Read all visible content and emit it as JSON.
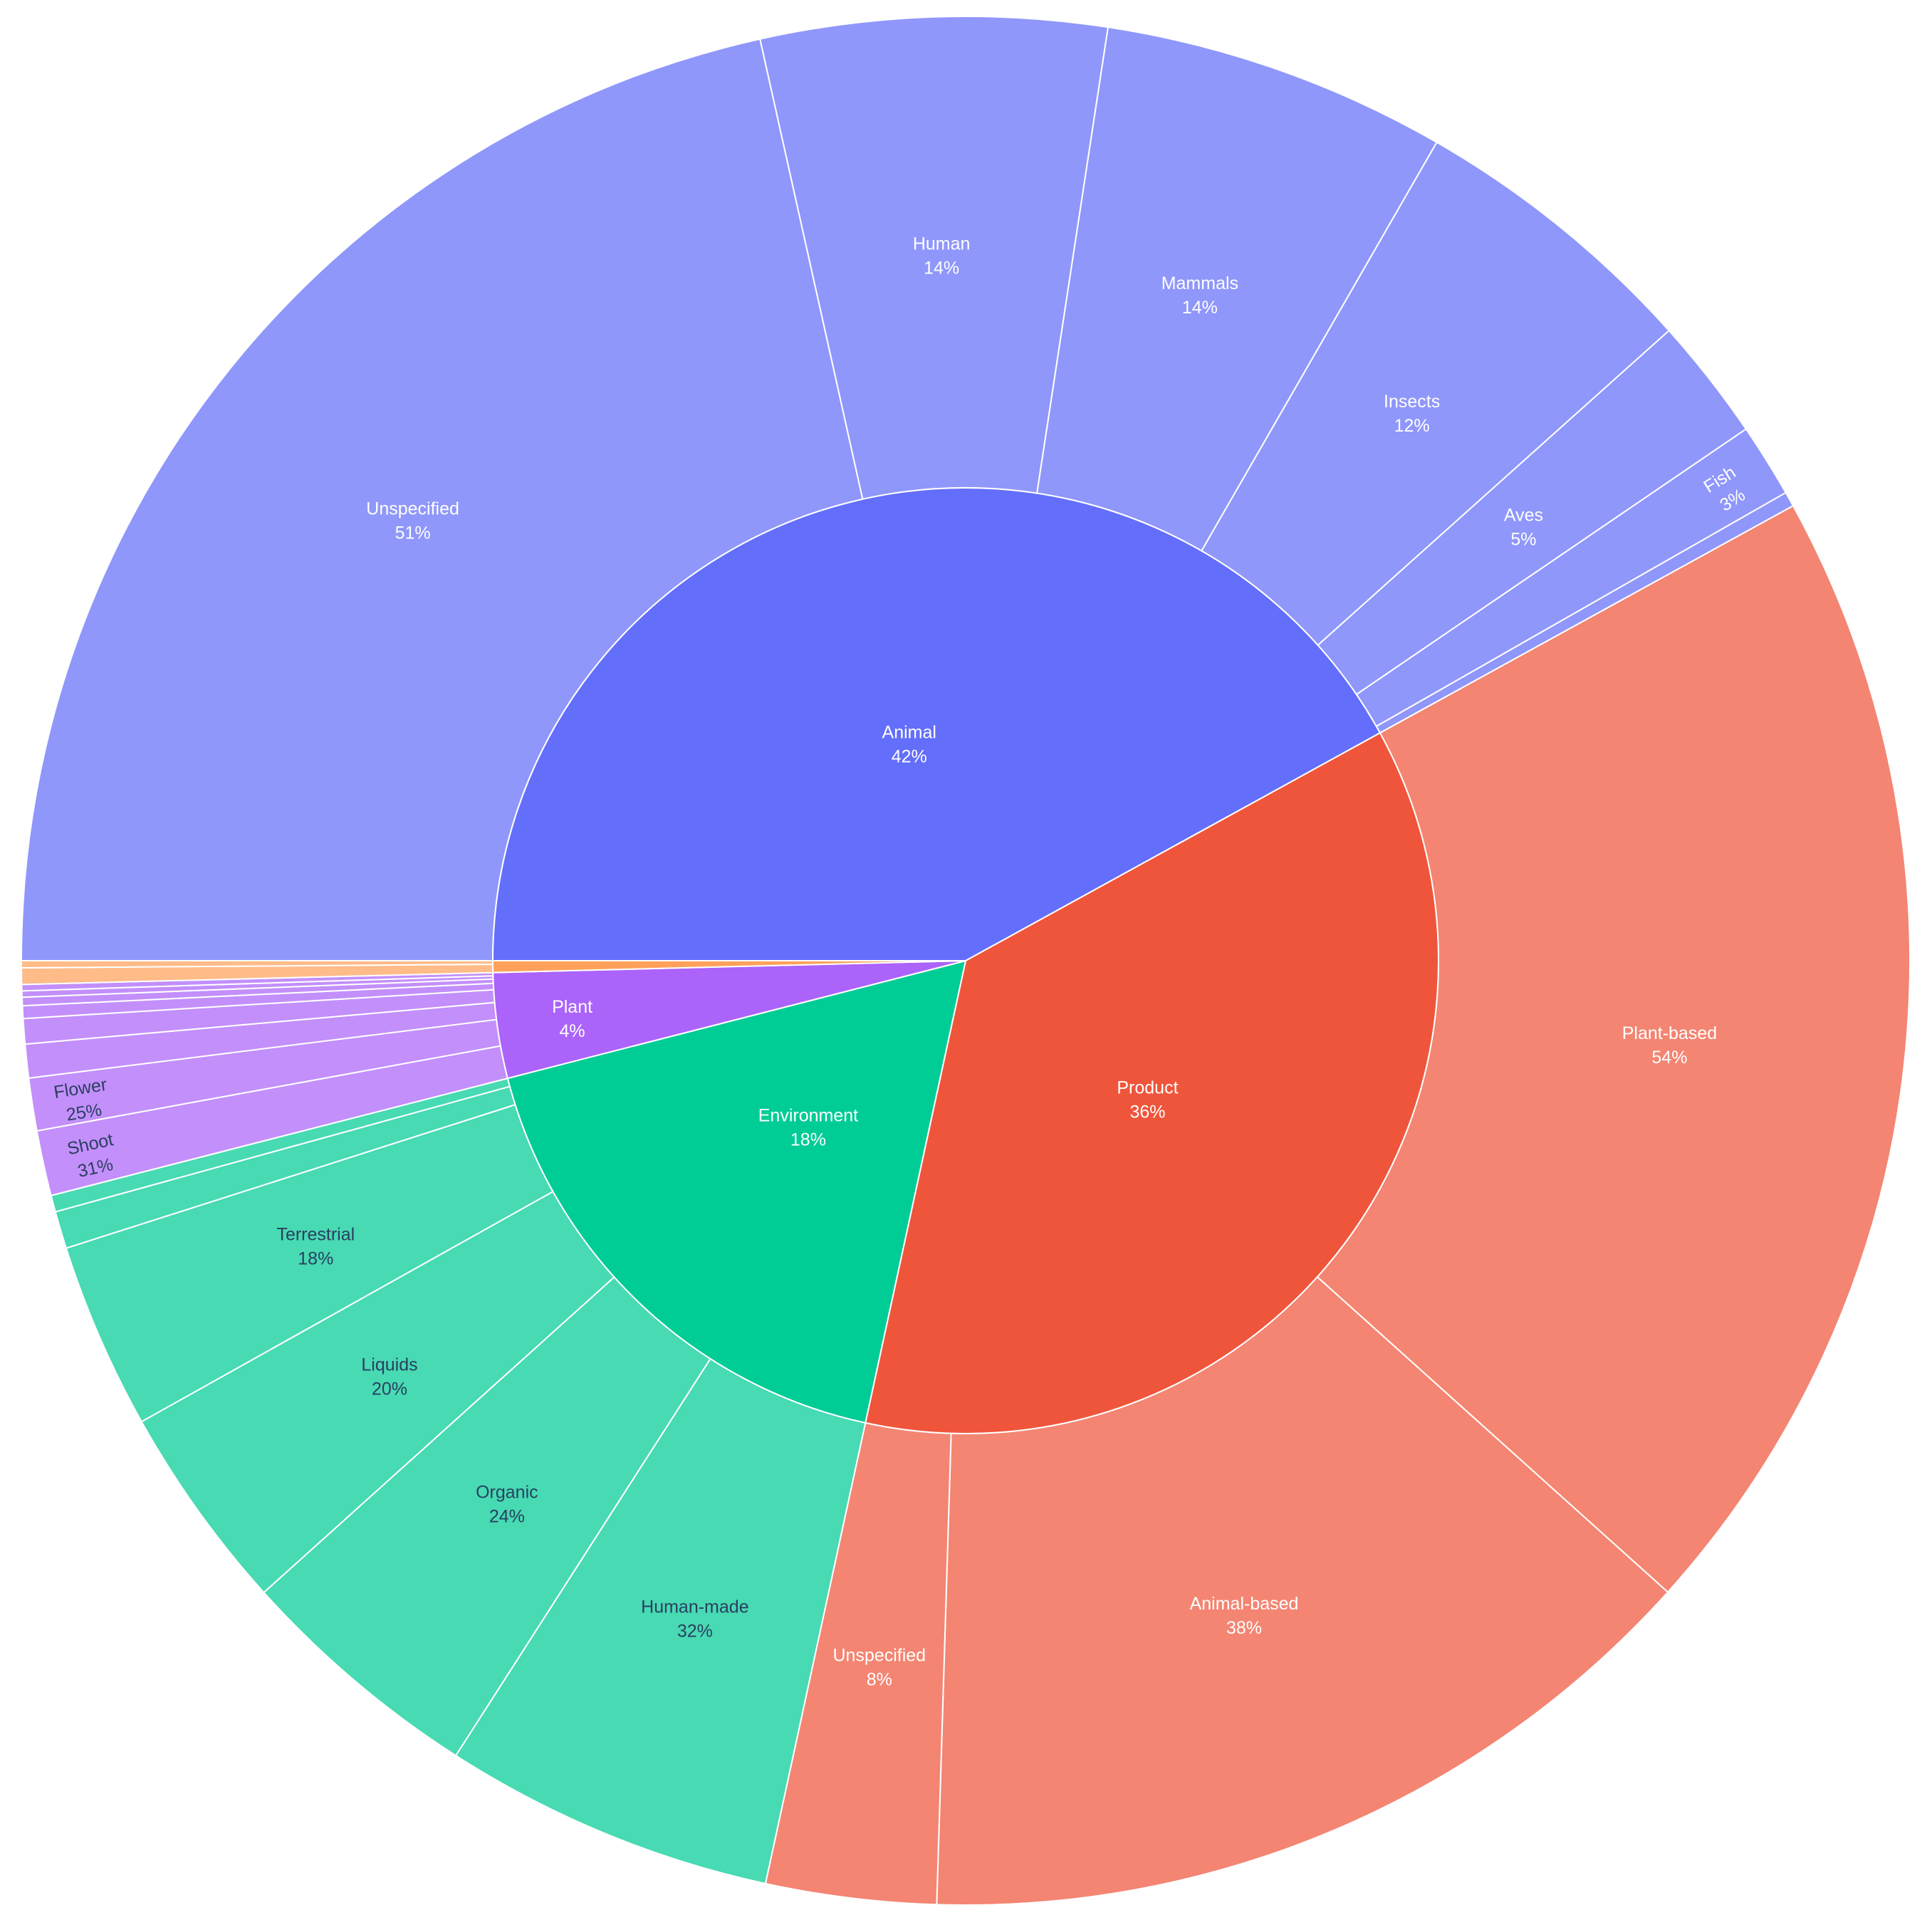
{
  "chart_data": {
    "type": "sunburst",
    "title": "",
    "inner": [
      {
        "id": "animal",
        "label": "Animal",
        "pct": "42%",
        "value": 42,
        "color": "#636efa",
        "children": [
          {
            "label": "Unspecified",
            "pct": "51%",
            "value": 51
          },
          {
            "label": "Human",
            "pct": "14%",
            "value": 14
          },
          {
            "label": "Mammals",
            "pct": "14%",
            "value": 14
          },
          {
            "label": "Insects",
            "pct": "12%",
            "value": 12
          },
          {
            "label": "Aves",
            "pct": "5%",
            "value": 5
          },
          {
            "label": "Fish",
            "pct": "3%",
            "value": 3
          },
          {
            "label": "",
            "pct": "",
            "value": 0.6
          }
        ]
      },
      {
        "id": "product",
        "label": "Product",
        "pct": "36%",
        "value": 36.4,
        "color": "#ef553b",
        "children": [
          {
            "label": "Plant-based",
            "pct": "54%",
            "value": 54
          },
          {
            "label": "Animal-based",
            "pct": "38%",
            "value": 38
          },
          {
            "label": "Unspecified",
            "pct": "8%",
            "value": 8
          }
        ]
      },
      {
        "id": "environment",
        "label": "Environment",
        "pct": "18%",
        "value": 17.6,
        "color": "#00cc96",
        "children": [
          {
            "label": "Human-made",
            "pct": "32%",
            "value": 32
          },
          {
            "label": "Organic",
            "pct": "24%",
            "value": 24
          },
          {
            "label": "Liquids",
            "pct": "20%",
            "value": 20
          },
          {
            "label": "Terrestrial",
            "pct": "18%",
            "value": 18
          },
          {
            "label": "",
            "pct": "",
            "value": 3.6
          },
          {
            "label": "",
            "pct": "",
            "value": 1.6
          }
        ]
      },
      {
        "id": "plant",
        "label": "Plant",
        "pct": "4%",
        "value": 3.6,
        "color": "#ab63fa",
        "children": [
          {
            "label": "Shoot",
            "pct": "31%",
            "value": 31
          },
          {
            "label": "Flower",
            "pct": "25%",
            "value": 25
          },
          {
            "label": "",
            "pct": "",
            "value": 16
          },
          {
            "label": "",
            "pct": "",
            "value": 12
          },
          {
            "label": "",
            "pct": "",
            "value": 6
          },
          {
            "label": "",
            "pct": "",
            "value": 4
          },
          {
            "label": "",
            "pct": "",
            "value": 3
          },
          {
            "label": "",
            "pct": "",
            "value": 3
          }
        ]
      },
      {
        "id": "other",
        "label": "",
        "pct": "",
        "value": 0.4,
        "color": "#ffa15a",
        "children": [
          {
            "label": "",
            "pct": "",
            "value": 70
          },
          {
            "label": "",
            "pct": "",
            "value": 30
          }
        ]
      }
    ]
  }
}
